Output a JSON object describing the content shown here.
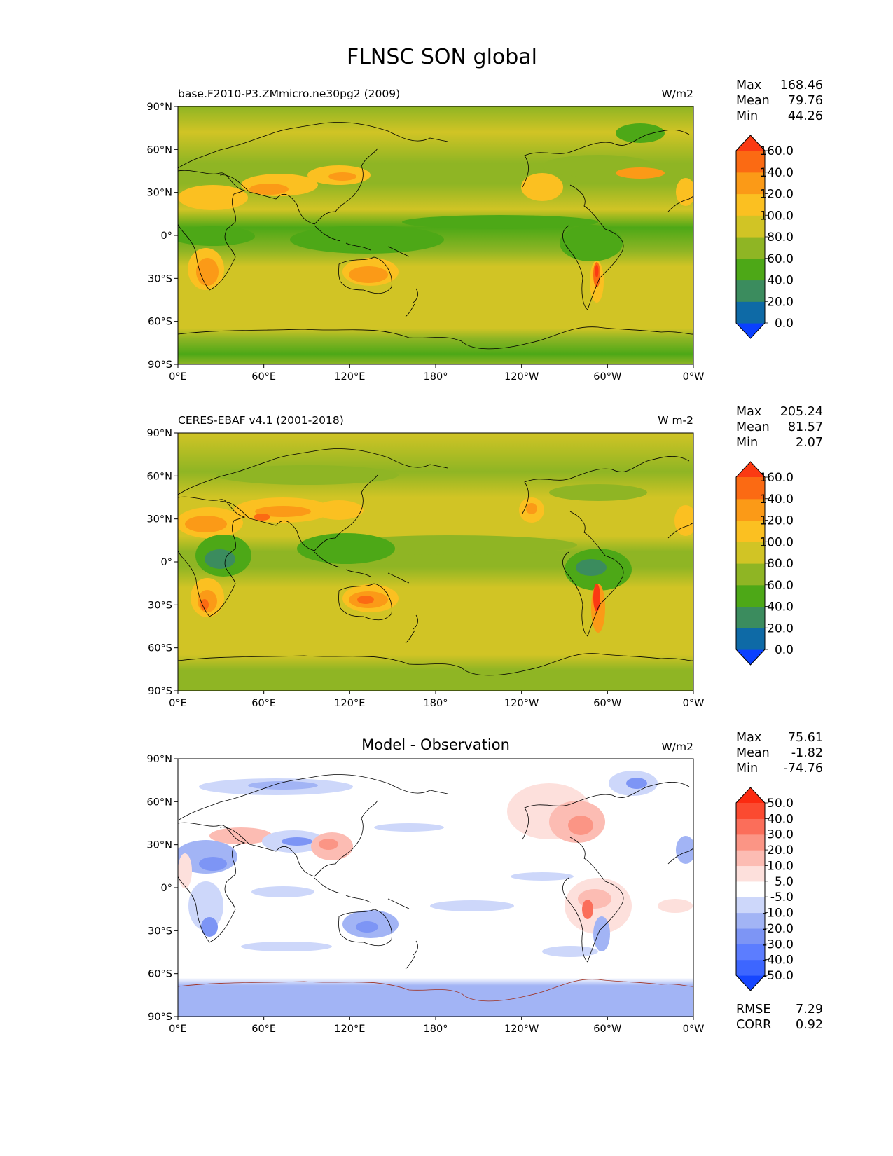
{
  "figure": {
    "title": "FLNSC SON global"
  },
  "axes": {
    "lat_ticks": [
      "90°N",
      "60°N",
      "30°N",
      "0°",
      "30°S",
      "60°S",
      "90°S"
    ],
    "lon_ticks": [
      "0°E",
      "60°E",
      "120°E",
      "180°",
      "120°W",
      "60°W",
      "0°W"
    ]
  },
  "panels": [
    {
      "id": "model",
      "left_title": "base.F2010-P3.ZMmicro.ne30pg2 (2009)",
      "center_title": "",
      "units": "W/m2",
      "stats": [
        {
          "label": "Max",
          "value": "168.46"
        },
        {
          "label": "Mean",
          "value": "79.76"
        },
        {
          "label": "Min",
          "value": "44.26"
        }
      ],
      "colorbar": {
        "colors": [
          "#0a40ff",
          "#0e6aa6",
          "#3b8c5e",
          "#4da817",
          "#8fb524",
          "#d1c425",
          "#fbc021",
          "#fb9a17",
          "#fb6a13",
          "#fb3a13"
        ],
        "labels": [
          "0.0",
          "20.0",
          "40.0",
          "60.0",
          "80.0",
          "100.0",
          "120.0",
          "140.0",
          "160.0"
        ]
      },
      "extra": []
    },
    {
      "id": "obs",
      "left_title": "CERES-EBAF v4.1 (2001-2018)",
      "center_title": "",
      "units": "W m-2",
      "stats": [
        {
          "label": "Max",
          "value": "205.24"
        },
        {
          "label": "Mean",
          "value": "81.57"
        },
        {
          "label": "Min",
          "value": "2.07"
        }
      ],
      "colorbar": {
        "colors": [
          "#0a40ff",
          "#0e6aa6",
          "#3b8c5e",
          "#4da817",
          "#8fb524",
          "#d1c425",
          "#fbc021",
          "#fb9a17",
          "#fb6a13",
          "#fb3a13"
        ],
        "labels": [
          "0.0",
          "20.0",
          "40.0",
          "60.0",
          "80.0",
          "100.0",
          "120.0",
          "140.0",
          "160.0"
        ]
      },
      "extra": []
    },
    {
      "id": "diff",
      "left_title": "",
      "center_title": "Model - Observation",
      "units": "W/m2",
      "stats": [
        {
          "label": "Max",
          "value": "75.61"
        },
        {
          "label": "Mean",
          "value": "-1.82"
        },
        {
          "label": "Min",
          "value": "-74.76"
        }
      ],
      "colorbar": {
        "colors": [
          "#1646ff",
          "#3d66ff",
          "#5c7dff",
          "#7d95f5",
          "#a2b4f5",
          "#cdd7fa",
          "#ffffff",
          "#fde0dc",
          "#fcbcb3",
          "#fb9585",
          "#fb6e5a",
          "#fb4a30",
          "#fb2a10"
        ],
        "labels": [
          "-50.0",
          "-40.0",
          "-30.0",
          "-20.0",
          "-10.0",
          "-5.0",
          "5.0",
          "10.0",
          "20.0",
          "30.0",
          "40.0",
          "50.0"
        ]
      },
      "extra": [
        {
          "label": "RMSE",
          "value": "7.29"
        },
        {
          "label": "CORR",
          "value": "0.92"
        }
      ]
    }
  ]
}
